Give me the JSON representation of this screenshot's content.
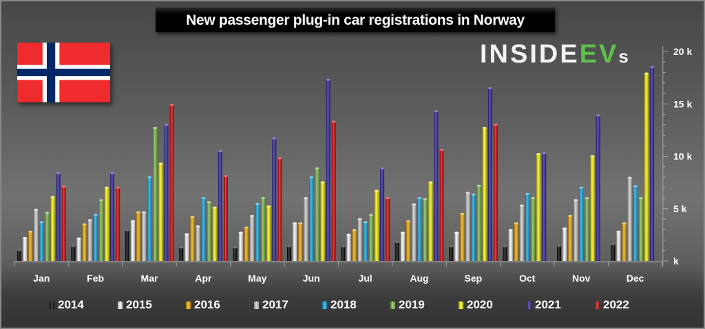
{
  "chart_data": {
    "type": "bar",
    "title": "New passenger plug-in car registrations in Norway",
    "xlabel": "",
    "ylabel": "",
    "ylim": [
      0,
      20000
    ],
    "yticks": [
      0,
      5000,
      10000,
      15000,
      20000
    ],
    "ytick_labels": [
      "k",
      "5 k",
      "10 k",
      "15 k",
      "20 k"
    ],
    "y_axis_side": "right",
    "legend_position": "bottom",
    "grid": false,
    "categories": [
      "Jan",
      "Feb",
      "Mar",
      "Apr",
      "May",
      "Jun",
      "Jul",
      "Aug",
      "Sep",
      "Oct",
      "Nov",
      "Dec"
    ],
    "series": [
      {
        "name": "2014",
        "color": "#000000",
        "values": [
          1050,
          1450,
          2950,
          1300,
          1300,
          1400,
          1400,
          1800,
          1400,
          1400,
          1450,
          1600
        ]
      },
      {
        "name": "2015",
        "color": "#f2f2f2",
        "values": [
          2200,
          2150,
          3800,
          2550,
          2700,
          3600,
          2500,
          2700,
          2700,
          2950,
          3100,
          2800
        ]
      },
      {
        "name": "2016",
        "color": "#f0a800",
        "values": [
          2800,
          3500,
          4650,
          4200,
          3200,
          3600,
          2950,
          3800,
          4500,
          3600,
          4300,
          3600
        ]
      },
      {
        "name": "2017",
        "color": "#c8c8c8",
        "values": [
          4900,
          3900,
          4650,
          3300,
          4300,
          6000,
          4000,
          5400,
          6500,
          5300,
          5800,
          7950
        ]
      },
      {
        "name": "2018",
        "color": "#12a4dc",
        "values": [
          3700,
          4400,
          8000,
          6000,
          5450,
          8000,
          3700,
          6000,
          6350,
          6400,
          7000,
          7150
        ]
      },
      {
        "name": "2019",
        "color": "#7ab648",
        "values": [
          4600,
          5800,
          12700,
          5600,
          6000,
          8850,
          4400,
          5900,
          7200,
          6000,
          6000,
          6000
        ]
      },
      {
        "name": "2020",
        "color": "#f5f000",
        "values": [
          6100,
          7000,
          9300,
          5100,
          5200,
          7500,
          6700,
          7500,
          12700,
          10200,
          10000,
          17900
        ]
      },
      {
        "name": "2021",
        "color": "#2b1f9a",
        "values": [
          8400,
          8400,
          13000,
          10500,
          11700,
          17300,
          8850,
          14300,
          16500,
          10300,
          13900,
          18500
        ]
      },
      {
        "name": "2022",
        "color": "#d00000",
        "values": [
          7100,
          7000,
          14900,
          8100,
          9800,
          13300,
          6000,
          10600,
          13000,
          null,
          null,
          null
        ]
      }
    ]
  },
  "header": {
    "title": "New passenger plug-in car registrations in Norway"
  },
  "branding": {
    "logo_text_white": "INSIDE",
    "logo_text_green": "EV",
    "logo_text_suffix": "s",
    "logo_green": "#5fc24a",
    "flag": "norway-flag"
  },
  "flag_colors": {
    "red": "#ef2b2d",
    "white": "#ffffff",
    "blue": "#002868"
  }
}
